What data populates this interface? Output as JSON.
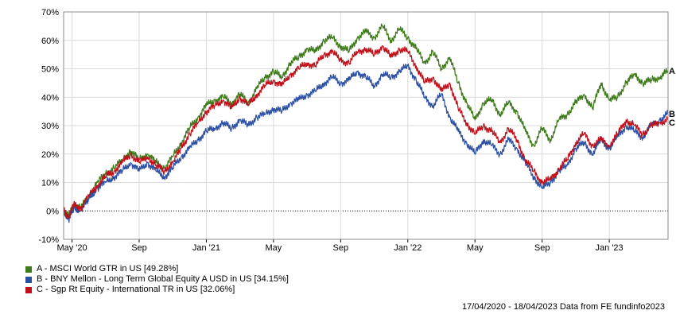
{
  "chart_data": {
    "type": "line",
    "ylim": [
      -10,
      70
    ],
    "y_ticks": [
      "70%",
      "60%",
      "50%",
      "40%",
      "30%",
      "20%",
      "10%",
      "0%",
      "-10%"
    ],
    "y_tick_values": [
      70,
      60,
      50,
      40,
      30,
      20,
      10,
      0,
      -10
    ],
    "x_tick_labels": [
      "May '20",
      "Sep",
      "Jan '21",
      "May",
      "Sep",
      "Jan '22",
      "May",
      "Sep",
      "Jan '23"
    ],
    "x_tick_months": [
      0.5,
      4.5,
      8.5,
      12.5,
      16.5,
      20.5,
      24.5,
      28.5,
      32.5
    ],
    "x_range_months": [
      0,
      36
    ],
    "grid": true,
    "zero_line": "dotted",
    "series": [
      {
        "name": "A - MSCI World GTR in US [49.28%]",
        "end_label": "A",
        "color": "#3d7a1a",
        "points": [
          [
            0,
            0
          ],
          [
            0.3,
            -2
          ],
          [
            0.6,
            2
          ],
          [
            1,
            1
          ],
          [
            1.5,
            5
          ],
          [
            2,
            10
          ],
          [
            2.5,
            13
          ],
          [
            3,
            15
          ],
          [
            3.5,
            18
          ],
          [
            4,
            21
          ],
          [
            4.5,
            18
          ],
          [
            5,
            20
          ],
          [
            5.5,
            17
          ],
          [
            6,
            15
          ],
          [
            6.5,
            19
          ],
          [
            7,
            24
          ],
          [
            7.5,
            29
          ],
          [
            8,
            33
          ],
          [
            8.5,
            37
          ],
          [
            9,
            39
          ],
          [
            9.5,
            40
          ],
          [
            10,
            38
          ],
          [
            10.5,
            41
          ],
          [
            11,
            38
          ],
          [
            11.5,
            43
          ],
          [
            12,
            47
          ],
          [
            12.5,
            49
          ],
          [
            13,
            47
          ],
          [
            13.5,
            52
          ],
          [
            14,
            54
          ],
          [
            14.5,
            57
          ],
          [
            15,
            56
          ],
          [
            15.5,
            60
          ],
          [
            16,
            61
          ],
          [
            16.5,
            58
          ],
          [
            17,
            56
          ],
          [
            17.5,
            61
          ],
          [
            18,
            63
          ],
          [
            18.5,
            61
          ],
          [
            19,
            65
          ],
          [
            19.5,
            60
          ],
          [
            20,
            64
          ],
          [
            20.5,
            61
          ],
          [
            21,
            57
          ],
          [
            21.5,
            52
          ],
          [
            22,
            56
          ],
          [
            22.5,
            50
          ],
          [
            23,
            54
          ],
          [
            23.5,
            45
          ],
          [
            24,
            38
          ],
          [
            24.5,
            32
          ],
          [
            25,
            38
          ],
          [
            25.5,
            39
          ],
          [
            26,
            34
          ],
          [
            26.5,
            38
          ],
          [
            27,
            35
          ],
          [
            27.5,
            28
          ],
          [
            28,
            23
          ],
          [
            28.5,
            29
          ],
          [
            29,
            25
          ],
          [
            29.5,
            32
          ],
          [
            30,
            34
          ],
          [
            30.5,
            38
          ],
          [
            31,
            41
          ],
          [
            31.5,
            36
          ],
          [
            32,
            45
          ],
          [
            32.5,
            39
          ],
          [
            33,
            40
          ],
          [
            33.5,
            45
          ],
          [
            34,
            48
          ],
          [
            34.5,
            45
          ],
          [
            35,
            46
          ],
          [
            35.5,
            47
          ],
          [
            36,
            49.28
          ]
        ]
      },
      {
        "name": "B - BNY Mellon - Long Term Global Equity A USD in US [34.15%]",
        "end_label": "B",
        "color": "#2b4fa3",
        "points": [
          [
            0,
            0
          ],
          [
            0.3,
            -3
          ],
          [
            0.6,
            1
          ],
          [
            1,
            0
          ],
          [
            1.5,
            4
          ],
          [
            2,
            8
          ],
          [
            2.5,
            10
          ],
          [
            3,
            12
          ],
          [
            3.5,
            14
          ],
          [
            4,
            17
          ],
          [
            4.5,
            14
          ],
          [
            5,
            17
          ],
          [
            5.5,
            14
          ],
          [
            6,
            12
          ],
          [
            6.5,
            15
          ],
          [
            7,
            19
          ],
          [
            7.5,
            22
          ],
          [
            8,
            25
          ],
          [
            8.5,
            28
          ],
          [
            9,
            29
          ],
          [
            9.5,
            31
          ],
          [
            10,
            29
          ],
          [
            10.5,
            32
          ],
          [
            11,
            30
          ],
          [
            11.5,
            33
          ],
          [
            12,
            34
          ],
          [
            12.5,
            36
          ],
          [
            13,
            35
          ],
          [
            13.5,
            38
          ],
          [
            14,
            39
          ],
          [
            14.5,
            41
          ],
          [
            15,
            42
          ],
          [
            15.5,
            45
          ],
          [
            16,
            47
          ],
          [
            16.5,
            45
          ],
          [
            17,
            46
          ],
          [
            17.5,
            49
          ],
          [
            18,
            47
          ],
          [
            18.5,
            44
          ],
          [
            19,
            48
          ],
          [
            19.5,
            47
          ],
          [
            20,
            49
          ],
          [
            20.5,
            51
          ],
          [
            21,
            46
          ],
          [
            21.5,
            40
          ],
          [
            22,
            37
          ],
          [
            22.5,
            41
          ],
          [
            23,
            33
          ],
          [
            23.5,
            28
          ],
          [
            24,
            24
          ],
          [
            24.5,
            20
          ],
          [
            25,
            25
          ],
          [
            25.5,
            23
          ],
          [
            26,
            20
          ],
          [
            26.5,
            25
          ],
          [
            27,
            22
          ],
          [
            27.5,
            17
          ],
          [
            28,
            12
          ],
          [
            28.5,
            8
          ],
          [
            29,
            10
          ],
          [
            29.5,
            14
          ],
          [
            30,
            16
          ],
          [
            30.5,
            22
          ],
          [
            31,
            24
          ],
          [
            31.5,
            20
          ],
          [
            32,
            25
          ],
          [
            32.5,
            22
          ],
          [
            33,
            26
          ],
          [
            33.5,
            30
          ],
          [
            34,
            28
          ],
          [
            34.5,
            26
          ],
          [
            35,
            30
          ],
          [
            35.5,
            32
          ],
          [
            36,
            34.15
          ]
        ]
      },
      {
        "name": "C - Sgp Rt Equity - International TR in US [32.06%]",
        "end_label": "C",
        "color": "#c0101a",
        "points": [
          [
            0,
            0
          ],
          [
            0.3,
            -2
          ],
          [
            0.6,
            2
          ],
          [
            1,
            1
          ],
          [
            1.5,
            5
          ],
          [
            2,
            9
          ],
          [
            2.5,
            12
          ],
          [
            3,
            14
          ],
          [
            3.5,
            17
          ],
          [
            4,
            20
          ],
          [
            4.5,
            17
          ],
          [
            5,
            19
          ],
          [
            5.5,
            16
          ],
          [
            6,
            14
          ],
          [
            6.5,
            17
          ],
          [
            7,
            22
          ],
          [
            7.5,
            27
          ],
          [
            8,
            31
          ],
          [
            8.5,
            35
          ],
          [
            9,
            37
          ],
          [
            9.5,
            39
          ],
          [
            10,
            36
          ],
          [
            10.5,
            40
          ],
          [
            11,
            37
          ],
          [
            11.5,
            41
          ],
          [
            12,
            44
          ],
          [
            12.5,
            46
          ],
          [
            13,
            44
          ],
          [
            13.5,
            48
          ],
          [
            14,
            50
          ],
          [
            14.5,
            52
          ],
          [
            15,
            51
          ],
          [
            15.5,
            55
          ],
          [
            16,
            56
          ],
          [
            16.5,
            53
          ],
          [
            17,
            52
          ],
          [
            17.5,
            56
          ],
          [
            18,
            57
          ],
          [
            18.5,
            55
          ],
          [
            19,
            58
          ],
          [
            19.5,
            54
          ],
          [
            20,
            57
          ],
          [
            20.5,
            56
          ],
          [
            21,
            51
          ],
          [
            21.5,
            45
          ],
          [
            22,
            47
          ],
          [
            22.5,
            42
          ],
          [
            23,
            45
          ],
          [
            23.5,
            36
          ],
          [
            24,
            31
          ],
          [
            24.5,
            27
          ],
          [
            25,
            30
          ],
          [
            25.5,
            28
          ],
          [
            26,
            24
          ],
          [
            26.5,
            29
          ],
          [
            27,
            25
          ],
          [
            27.5,
            18
          ],
          [
            28,
            14
          ],
          [
            28.5,
            10
          ],
          [
            29,
            11
          ],
          [
            29.5,
            15
          ],
          [
            30,
            18
          ],
          [
            30.5,
            24
          ],
          [
            31,
            27
          ],
          [
            31.5,
            23
          ],
          [
            32,
            25
          ],
          [
            32.5,
            23
          ],
          [
            33,
            27
          ],
          [
            33.5,
            32
          ],
          [
            34,
            30
          ],
          [
            34.5,
            27
          ],
          [
            35,
            30
          ],
          [
            35.5,
            31
          ],
          [
            36,
            32.06
          ]
        ]
      }
    ]
  },
  "footer": {
    "text": "17/04/2020 - 18/04/2023 Data from FE fundinfo2023"
  }
}
